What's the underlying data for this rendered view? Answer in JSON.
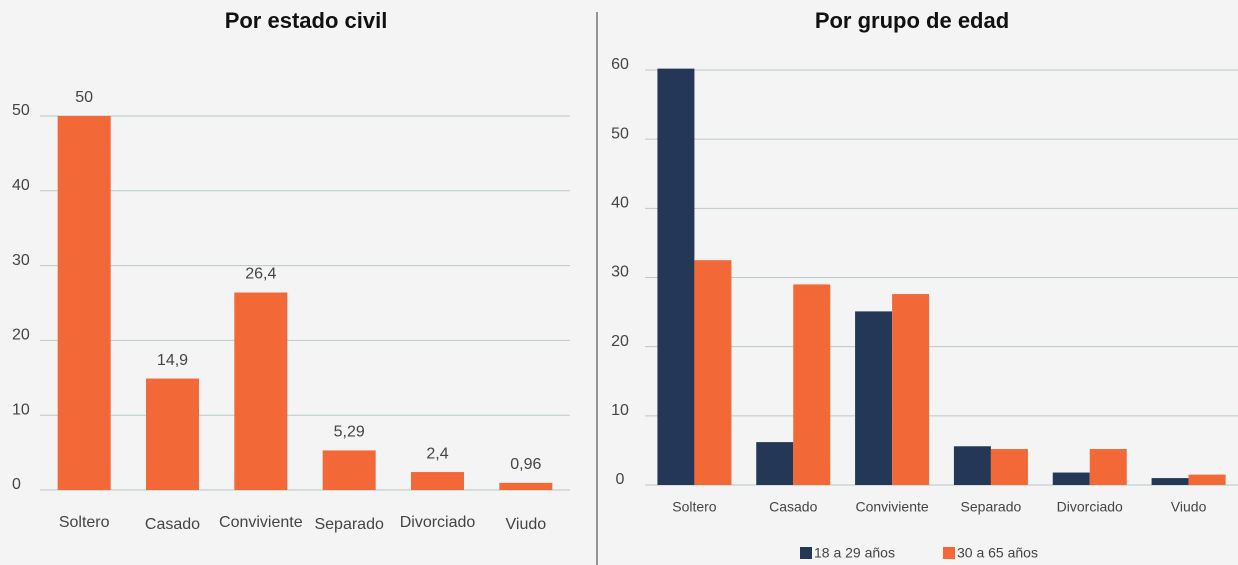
{
  "chart_data": [
    {
      "type": "bar",
      "title": "Por estado civil",
      "categories": [
        "Soltero",
        "Casado",
        "Conviviente",
        "Separado",
        "Divorciado",
        "Viudo"
      ],
      "values": [
        50,
        14.9,
        26.4,
        5.29,
        2.4,
        0.96
      ],
      "value_labels": [
        "50",
        "14,9",
        "26,4",
        "5,29",
        "2,4",
        "0,96"
      ],
      "color": "#f26836",
      "ylim": [
        0,
        50
      ],
      "yticks": [
        0,
        10,
        20,
        30,
        40,
        50
      ],
      "grid": true
    },
    {
      "type": "grouped_bar",
      "title": "Por grupo de edad",
      "categories": [
        "Soltero",
        "Casado",
        "Conviviente",
        "Separado",
        "Divorciado",
        "Viudo"
      ],
      "series": [
        {
          "name": "18 a 29 años",
          "color": "#253756",
          "values": [
            60.2,
            6.2,
            25.1,
            5.6,
            1.8,
            1.0
          ]
        },
        {
          "name": "30 a 65 años",
          "color": "#f26836",
          "values": [
            32.5,
            29,
            27.6,
            5.2,
            5.2,
            1.5
          ]
        }
      ],
      "ylim": [
        0,
        60
      ],
      "yticks": [
        0,
        10,
        20,
        30,
        40,
        50,
        60
      ],
      "grid": true,
      "legend": "bottom"
    }
  ]
}
